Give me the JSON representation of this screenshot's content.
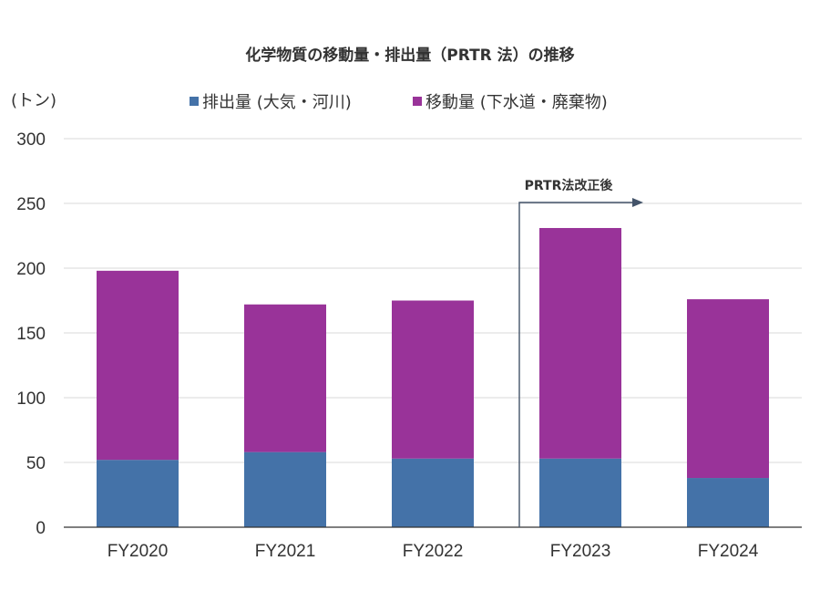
{
  "chart_data": {
    "type": "bar",
    "stacked": true,
    "title": "化学物質の移動量・排出量（PRTR 法）の推移",
    "ylabel": "(トン)",
    "xlabel": "",
    "ylim": [
      0,
      300
    ],
    "yticks": [
      0,
      50,
      100,
      150,
      200,
      250,
      300
    ],
    "grid": true,
    "legend_position": "top",
    "categories": [
      "FY2020",
      "FY2021",
      "FY2022",
      "FY2023",
      "FY2024"
    ],
    "series": [
      {
        "name": "排出量 (大気・河川)",
        "color": "#4472a8",
        "values": [
          52,
          58,
          53,
          53,
          38
        ]
      },
      {
        "name": "移動量 (下水道・廃棄物)",
        "color": "#993399",
        "values": [
          146,
          114,
          122,
          178,
          138
        ]
      }
    ],
    "annotation": {
      "text": "PRTR法改正後",
      "from_category": "FY2023",
      "color": "#44546a"
    }
  }
}
